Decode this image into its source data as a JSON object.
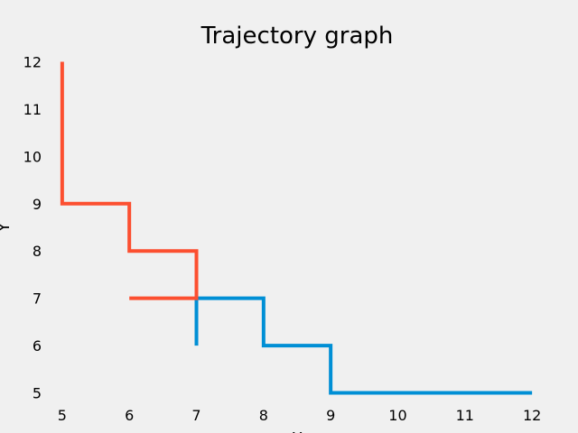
{
  "chart_data": {
    "type": "line",
    "title": "Trajectory graph",
    "xlabel": "X",
    "ylabel": "Y",
    "xlim": [
      4.8,
      12.2
    ],
    "ylim": [
      4.8,
      12.2
    ],
    "xticks": [
      5,
      6,
      7,
      8,
      9,
      10,
      11,
      12
    ],
    "yticks": [
      5,
      6,
      7,
      8,
      9,
      10,
      11,
      12
    ],
    "grid": false,
    "legend": "none",
    "series": [
      {
        "color": "#008fd5",
        "x": [
          7,
          7,
          8,
          8,
          9,
          9,
          12
        ],
        "y": [
          6,
          7,
          7,
          6,
          6,
          5,
          5
        ]
      },
      {
        "color": "#fc4f30",
        "x": [
          5,
          5,
          6,
          6,
          7,
          7,
          6
        ],
        "y": [
          12,
          9,
          9,
          8,
          8,
          7,
          7
        ]
      }
    ]
  }
}
